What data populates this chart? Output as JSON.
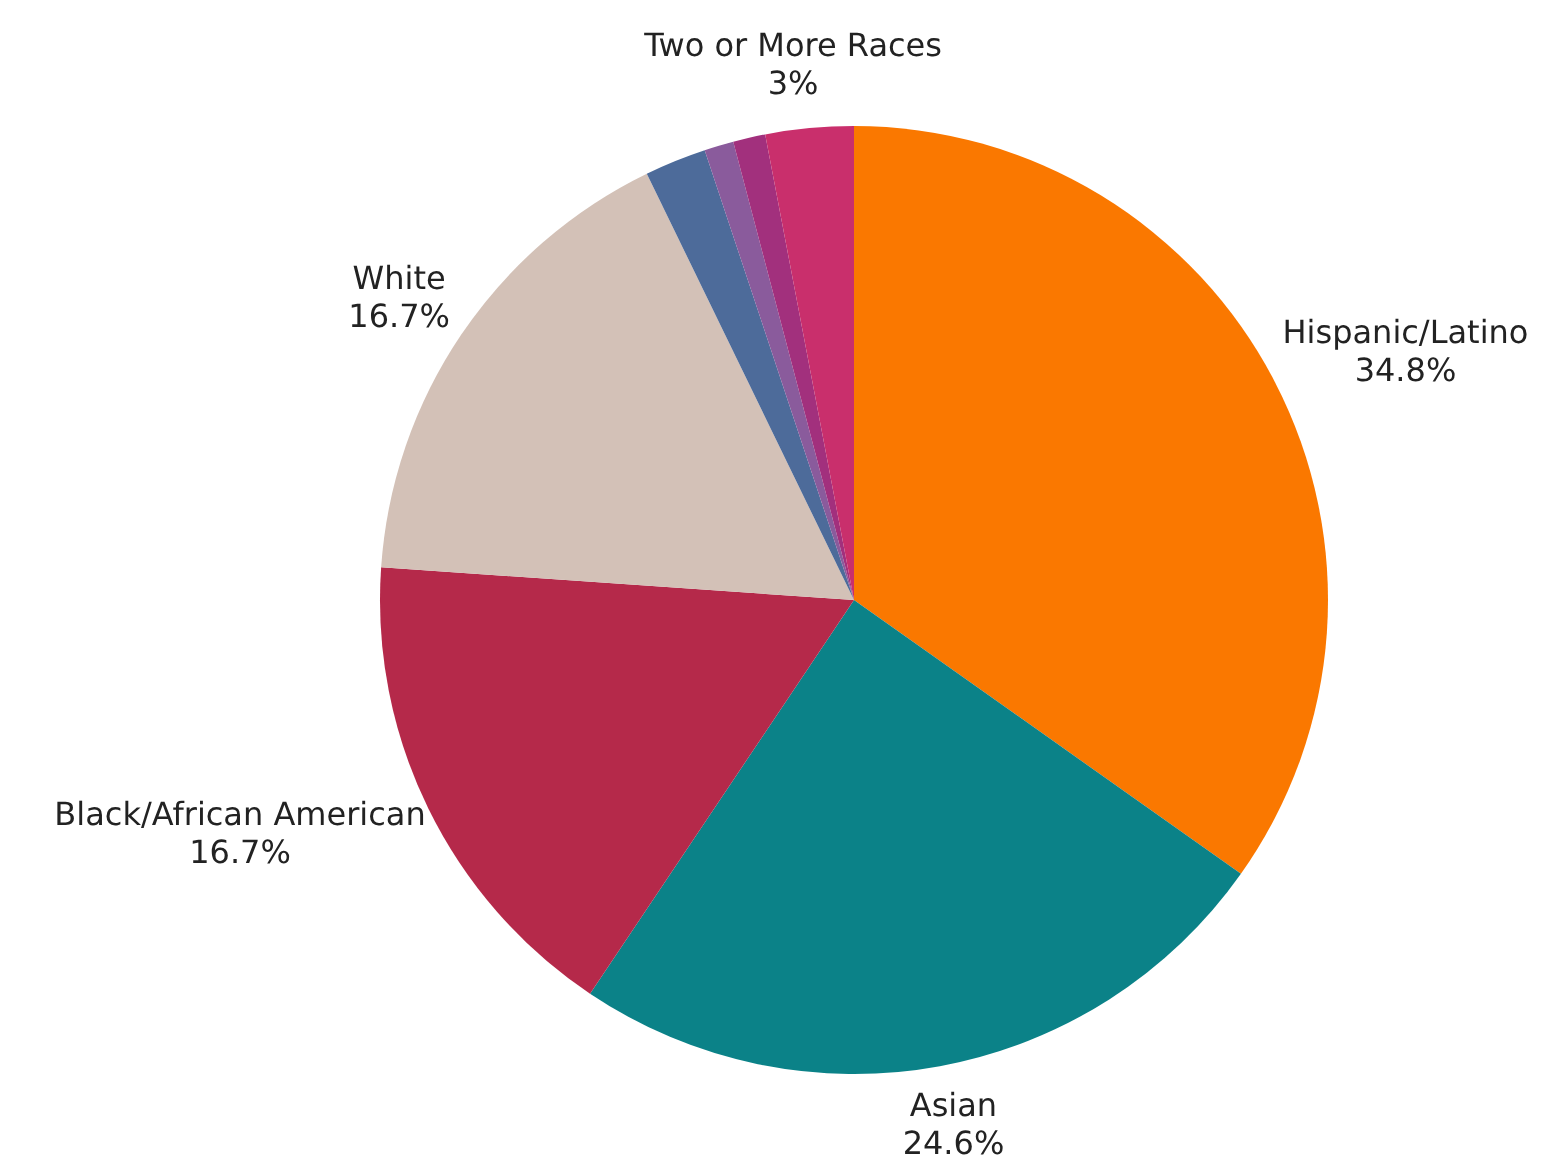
{
  "chart_data": {
    "type": "pie",
    "categories": [
      "Hispanic/Latino",
      "Asian",
      "Black/African American",
      "White",
      null,
      null,
      null,
      "Two or More Races"
    ],
    "values": [
      34.8,
      24.6,
      16.7,
      16.7,
      2.1,
      1.0,
      1.1,
      3
    ],
    "value_labels": [
      "34.8%",
      "24.6%",
      "16.7%",
      "16.7%",
      null,
      null,
      null,
      "3%"
    ],
    "colors": [
      "#fa7800",
      "#0b8288",
      "#b5294a",
      "#d3c1b7",
      "#4d6b9a",
      "#8a5b9c",
      "#a2307d",
      "#c92f6c"
    ],
    "legend": false
  }
}
